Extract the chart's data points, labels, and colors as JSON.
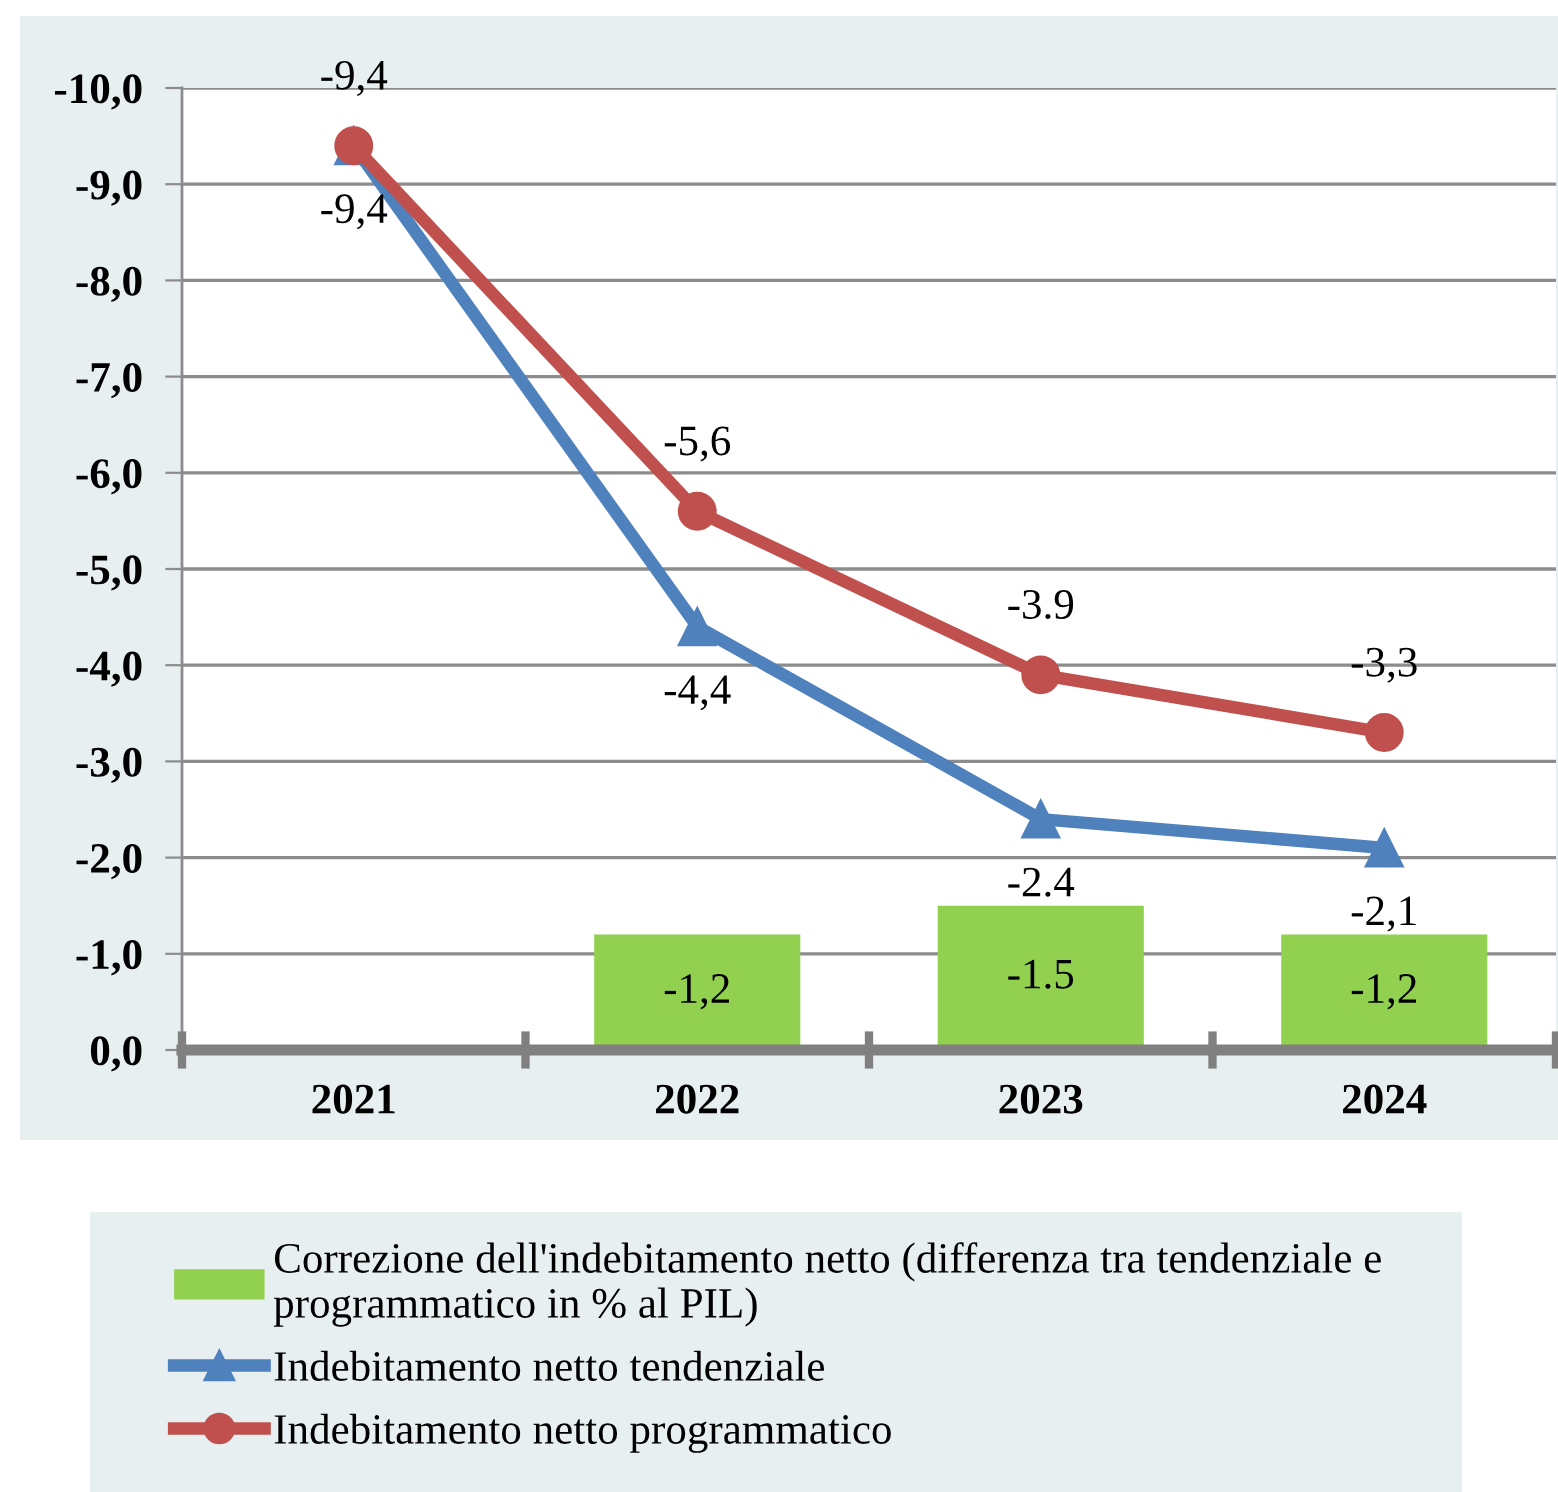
{
  "chart_data": {
    "type": "bar",
    "categories": [
      "2021",
      "2022",
      "2023",
      "2024"
    ],
    "series": [
      {
        "name": "Correzione dell'indebitamento netto (differenza tra tendenziale e programmatico in % al PIL)",
        "color": "#92d050",
        "values": [
          null,
          -1.2,
          -1.5,
          -1.2
        ],
        "value_labels": [
          null,
          "-1,2",
          "-1.5",
          "-1,2"
        ]
      },
      {
        "name": "Indebitamento netto tendenziale",
        "type": "line",
        "color": "#4f81bd",
        "marker": "triangle",
        "values": [
          -9.4,
          -4.4,
          -2.4,
          -2.1
        ],
        "value_labels": [
          "-9,4",
          "-4,4",
          "-2.4",
          "-2,1"
        ]
      },
      {
        "name": "Indebitamento netto programmatico",
        "type": "line",
        "color": "#c0504d",
        "marker": "circle",
        "values": [
          -9.4,
          -5.6,
          -3.9,
          -3.3
        ],
        "value_labels": [
          "-9,4",
          "-5,6",
          "-3.9",
          "-3,3"
        ]
      }
    ],
    "ylim": [
      0,
      -10
    ],
    "yticks": [
      {
        "value": -10,
        "label": "-10,0"
      },
      {
        "value": -9,
        "label": "-9,0"
      },
      {
        "value": -8,
        "label": "-8,0"
      },
      {
        "value": -7,
        "label": "-7,0"
      },
      {
        "value": -6,
        "label": "-6,0"
      },
      {
        "value": -5,
        "label": "-5,0"
      },
      {
        "value": -4,
        "label": "-4,0"
      },
      {
        "value": -3,
        "label": "-3,0"
      },
      {
        "value": -2,
        "label": "-2,0"
      },
      {
        "value": -1,
        "label": "-1,0"
      },
      {
        "value": 0,
        "label": "0,0"
      }
    ],
    "grid": "y",
    "legend": "bottom"
  }
}
